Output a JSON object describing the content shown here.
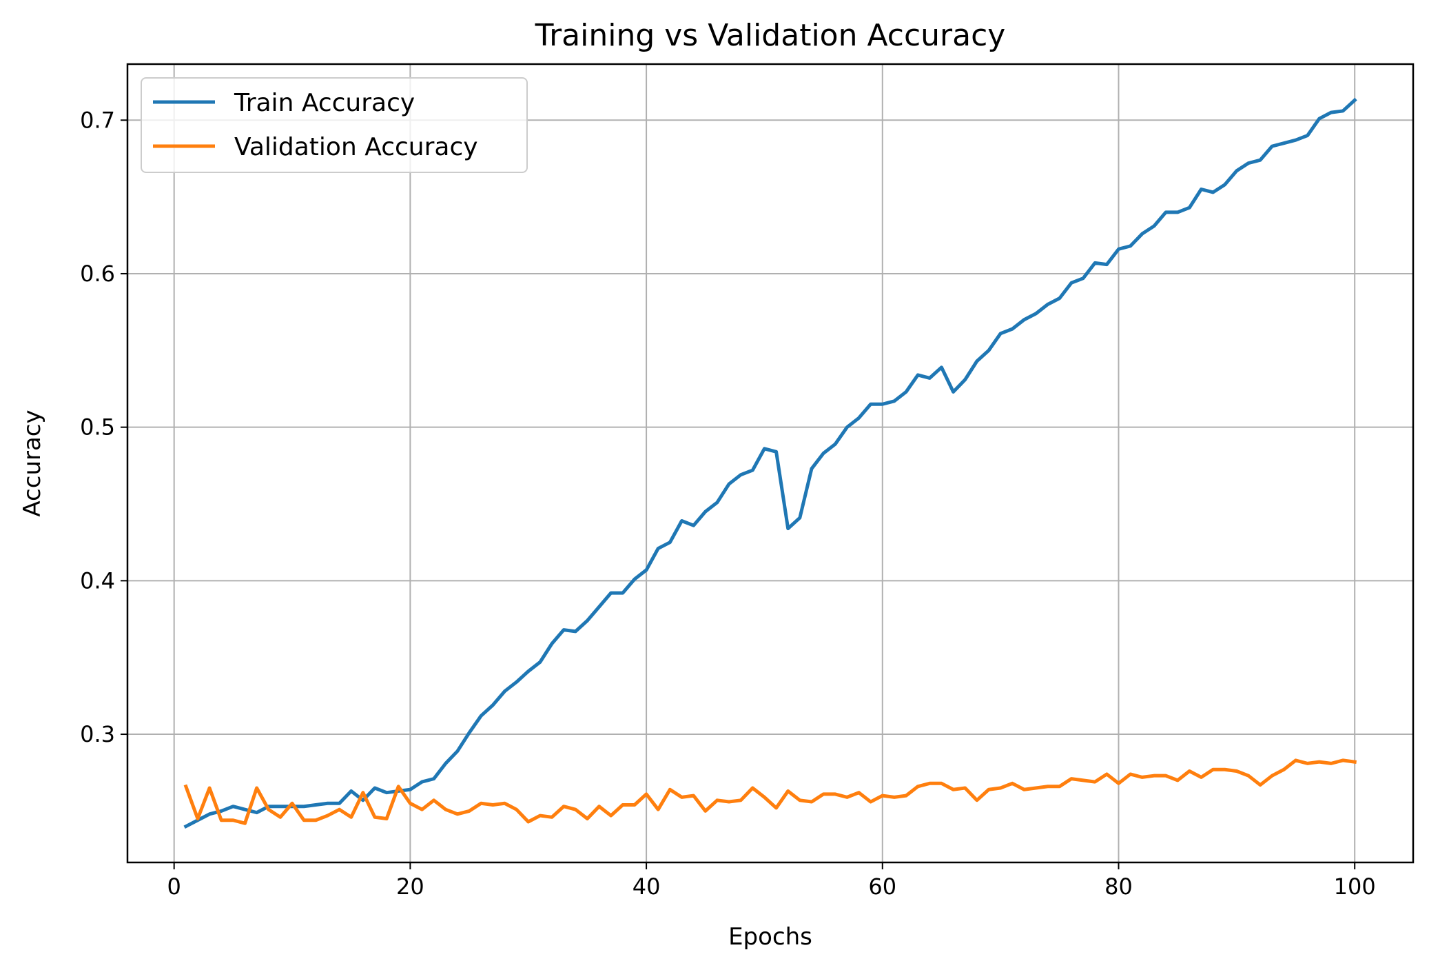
{
  "chart_data": {
    "type": "line",
    "title": "Training vs Validation Accuracy",
    "xlabel": "Epochs",
    "ylabel": "Accuracy",
    "xlim": [
      -3.95,
      104.95
    ],
    "ylim": [
      0.2165,
      0.7365
    ],
    "xticks": [
      0,
      20,
      40,
      60,
      80,
      100
    ],
    "xtick_labels": [
      "0",
      "20",
      "40",
      "60",
      "80",
      "100"
    ],
    "yticks": [
      0.3,
      0.4,
      0.5,
      0.6,
      0.7
    ],
    "ytick_labels": [
      "0.3",
      "0.4",
      "0.5",
      "0.6",
      "0.7"
    ],
    "grid": true,
    "legend_position": "top-left",
    "x": [
      1,
      2,
      3,
      4,
      5,
      6,
      7,
      8,
      9,
      10,
      11,
      12,
      13,
      14,
      15,
      16,
      17,
      18,
      19,
      20,
      21,
      22,
      23,
      24,
      25,
      26,
      27,
      28,
      29,
      30,
      31,
      32,
      33,
      34,
      35,
      36,
      37,
      38,
      39,
      40,
      41,
      42,
      43,
      44,
      45,
      46,
      47,
      48,
      49,
      50,
      51,
      52,
      53,
      54,
      55,
      56,
      57,
      58,
      59,
      60,
      61,
      62,
      63,
      64,
      65,
      66,
      67,
      68,
      69,
      70,
      71,
      72,
      73,
      74,
      75,
      76,
      77,
      78,
      79,
      80,
      81,
      82,
      83,
      84,
      85,
      86,
      87,
      88,
      89,
      90,
      91,
      92,
      93,
      94,
      95,
      96,
      97,
      98,
      99,
      100
    ],
    "series": [
      {
        "name": "Train Accuracy",
        "color": "#1f77b4",
        "values": [
          0.24,
          0.244,
          0.248,
          0.25,
          0.253,
          0.251,
          0.249,
          0.253,
          0.253,
          0.253,
          0.253,
          0.254,
          0.255,
          0.255,
          0.263,
          0.257,
          0.265,
          0.262,
          0.263,
          0.264,
          0.269,
          0.271,
          0.281,
          0.289,
          0.301,
          0.312,
          0.319,
          0.328,
          0.334,
          0.341,
          0.347,
          0.359,
          0.368,
          0.367,
          0.374,
          0.383,
          0.392,
          0.392,
          0.401,
          0.407,
          0.421,
          0.425,
          0.439,
          0.436,
          0.445,
          0.451,
          0.463,
          0.469,
          0.472,
          0.486,
          0.484,
          0.434,
          0.441,
          0.473,
          0.483,
          0.489,
          0.5,
          0.506,
          0.515,
          0.515,
          0.517,
          0.523,
          0.534,
          0.532,
          0.539,
          0.523,
          0.531,
          0.543,
          0.55,
          0.561,
          0.564,
          0.57,
          0.574,
          0.58,
          0.584,
          0.594,
          0.597,
          0.607,
          0.606,
          0.616,
          0.618,
          0.626,
          0.631,
          0.64,
          0.64,
          0.643,
          0.655,
          0.653,
          0.658,
          0.667,
          0.672,
          0.674,
          0.683,
          0.685,
          0.687,
          0.69,
          0.701,
          0.705,
          0.706,
          0.713
        ]
      },
      {
        "name": "Validation Accuracy",
        "color": "#ff7f0e",
        "values": [
          0.266,
          0.245,
          0.265,
          0.244,
          0.244,
          0.242,
          0.265,
          0.251,
          0.246,
          0.255,
          0.244,
          0.244,
          0.247,
          0.251,
          0.246,
          0.262,
          0.246,
          0.245,
          0.266,
          0.255,
          0.251,
          0.257,
          0.251,
          0.248,
          0.25,
          0.255,
          0.254,
          0.255,
          0.251,
          0.243,
          0.247,
          0.246,
          0.253,
          0.251,
          0.245,
          0.253,
          0.247,
          0.254,
          0.254,
          0.261,
          0.251,
          0.264,
          0.259,
          0.26,
          0.25,
          0.257,
          0.256,
          0.257,
          0.265,
          0.259,
          0.252,
          0.263,
          0.257,
          0.256,
          0.261,
          0.261,
          0.259,
          0.262,
          0.256,
          0.26,
          0.259,
          0.26,
          0.266,
          0.268,
          0.268,
          0.264,
          0.265,
          0.257,
          0.264,
          0.265,
          0.268,
          0.264,
          0.265,
          0.266,
          0.266,
          0.271,
          0.27,
          0.269,
          0.274,
          0.268,
          0.274,
          0.272,
          0.273,
          0.273,
          0.27,
          0.276,
          0.272,
          0.277,
          0.277,
          0.276,
          0.273,
          0.267,
          0.273,
          0.277,
          0.283,
          0.281,
          0.282,
          0.281,
          0.283,
          0.282
        ]
      }
    ]
  }
}
